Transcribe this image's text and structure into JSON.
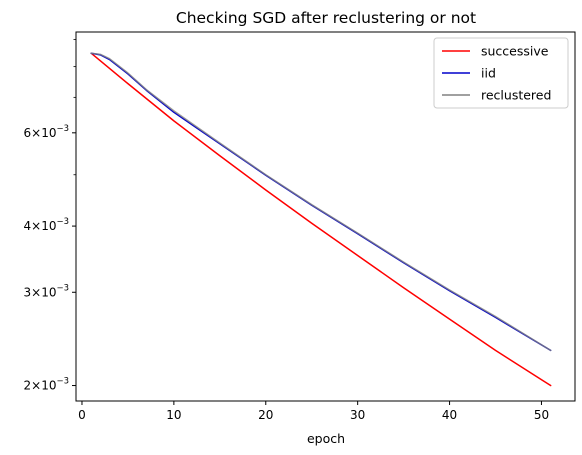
{
  "chart_data": {
    "type": "line",
    "title": "Checking SGD after reclustering or not",
    "xlabel": "epoch",
    "ylabel": "",
    "xlim": [
      -0.65,
      53.65
    ],
    "ylim": [
      0.00187,
      0.0093
    ],
    "yscale": "log",
    "xticks": [
      {
        "value": 0,
        "label": "0"
      },
      {
        "value": 10,
        "label": "10"
      },
      {
        "value": 20,
        "label": "20"
      },
      {
        "value": 30,
        "label": "30"
      },
      {
        "value": 40,
        "label": "40"
      },
      {
        "value": 50,
        "label": "50"
      }
    ],
    "yticks": [
      {
        "value": 0.002,
        "base": "2",
        "exp": "−3"
      },
      {
        "value": 0.003,
        "base": "3",
        "exp": "−3"
      },
      {
        "value": 0.004,
        "base": "4",
        "exp": "−3"
      },
      {
        "value": 0.006,
        "base": "6",
        "exp": "−3"
      }
    ],
    "minor_yticks": [
      0.005,
      0.007,
      0.008,
      0.009
    ],
    "grid": false,
    "legend_position": "top-right",
    "series": [
      {
        "name": "successive",
        "color": "#ff0000",
        "x": [
          1,
          5,
          10,
          15,
          20,
          25,
          30,
          35,
          40,
          45,
          51
        ],
        "y": [
          0.00848,
          0.00743,
          0.00632,
          0.00543,
          0.00468,
          0.00405,
          0.00352,
          0.00306,
          0.00267,
          0.00233,
          0.002
        ]
      },
      {
        "name": "iid",
        "color": "#0000cc",
        "x": [
          1,
          2,
          3,
          5,
          7,
          10,
          15,
          20,
          25,
          30,
          35,
          40,
          45,
          51
        ],
        "y": [
          0.00848,
          0.00842,
          0.00825,
          0.00775,
          0.00722,
          0.00656,
          0.00572,
          0.00499,
          0.00438,
          0.00387,
          0.00341,
          0.00302,
          0.00269,
          0.00233
        ]
      },
      {
        "name": "reclustered",
        "color": "#808080",
        "x": [
          1,
          2,
          3,
          5,
          7,
          10,
          15,
          20,
          25,
          30,
          35,
          40,
          45,
          51
        ],
        "y": [
          0.00848,
          0.00844,
          0.00828,
          0.00778,
          0.00724,
          0.0066,
          0.00574,
          0.005,
          0.00439,
          0.00388,
          0.00342,
          0.00303,
          0.0027,
          0.00233
        ]
      }
    ]
  }
}
